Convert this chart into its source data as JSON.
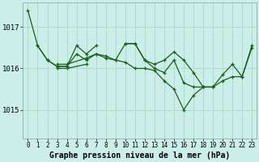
{
  "background_color": "#cceee8",
  "grid_color": "#aaddcc",
  "line_color": "#1a5e1a",
  "marker_color": "#1a5e1a",
  "xlabel": "Graphe pression niveau de la mer (hPa)",
  "xlabel_fontsize": 7,
  "xtick_fontsize": 5.5,
  "ytick_fontsize": 6.5,
  "ylim": [
    1014.3,
    1017.6
  ],
  "xlim": [
    -0.5,
    23.5
  ],
  "yticks": [
    1015,
    1016,
    1017
  ],
  "xticks": [
    0,
    1,
    2,
    3,
    4,
    5,
    6,
    7,
    8,
    9,
    10,
    11,
    12,
    13,
    14,
    15,
    16,
    17,
    18,
    19,
    20,
    21,
    22,
    23
  ],
  "series": [
    {
      "x": [
        0,
        1,
        2,
        3,
        4,
        5,
        6,
        7,
        8,
        9,
        10,
        11,
        12,
        13,
        14,
        15,
        16,
        17,
        18,
        19,
        20,
        21,
        22,
        23
      ],
      "y": [
        1017.4,
        1016.55,
        1016.2,
        1016.05,
        1016.05,
        1016.35,
        1016.2,
        1016.35,
        1016.3,
        1016.2,
        1016.6,
        1016.6,
        1016.2,
        1016.0,
        1015.9,
        1016.2,
        1015.65,
        1015.55,
        1015.55,
        1015.55,
        1015.85,
        1016.1,
        1015.8,
        1016.5
      ]
    },
    {
      "x": [
        1,
        2,
        3,
        4,
        5,
        6,
        7
      ],
      "y": [
        1016.55,
        1016.2,
        1016.05,
        1016.05,
        1016.55,
        1016.35,
        1016.55
      ]
    },
    {
      "x": [
        3,
        4,
        6,
        7,
        8,
        9,
        10,
        11,
        12,
        13,
        14,
        15,
        16,
        17,
        18,
        19
      ],
      "y": [
        1016.1,
        1016.1,
        1016.25,
        1016.35,
        1016.25,
        1016.2,
        1016.15,
        1016.0,
        1016.0,
        1015.95,
        1015.7,
        1015.5,
        1015.0,
        1015.35,
        1015.55,
        1015.55
      ]
    },
    {
      "x": [
        3,
        4,
        6
      ],
      "y": [
        1016.0,
        1016.0,
        1016.1
      ]
    },
    {
      "x": [
        10,
        11,
        12,
        13,
        14,
        15,
        16,
        17,
        18,
        19,
        20,
        21,
        22,
        23
      ],
      "y": [
        1016.6,
        1016.6,
        1016.2,
        1016.1,
        1016.2,
        1016.4,
        1016.2,
        1015.9,
        1015.55,
        1015.55,
        1015.7,
        1015.8,
        1015.8,
        1016.55
      ]
    }
  ]
}
